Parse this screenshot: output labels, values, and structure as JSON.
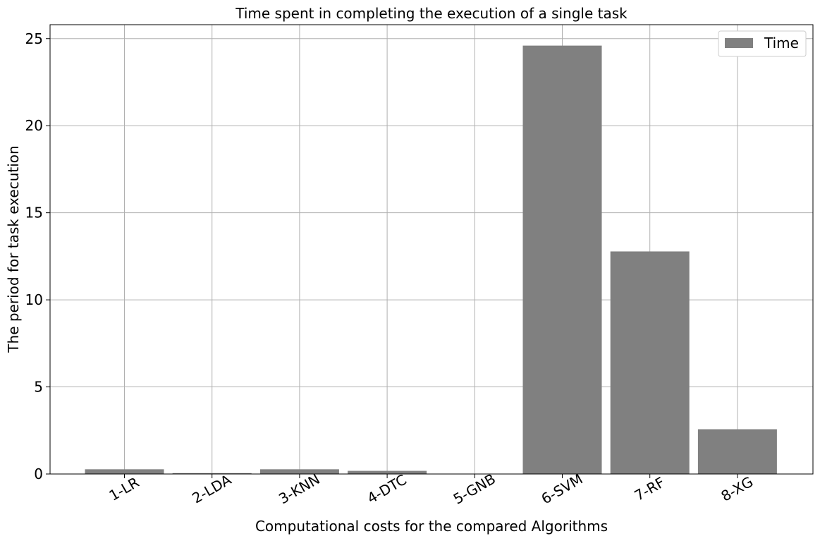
{
  "chart_data": {
    "type": "bar",
    "title": "Time spent in completing the execution of a single task",
    "xlabel": "Computational costs for the compared Algorithms",
    "ylabel": "The period for task execution",
    "categories": [
      "1-LR",
      "2-LDA",
      "3-KNN",
      "4-DTC",
      "5-GNB",
      "6-SVM",
      "7-RF",
      "8-XG"
    ],
    "series": [
      {
        "name": "Time",
        "values": [
          0.27,
          0.05,
          0.27,
          0.18,
          0.01,
          24.6,
          12.78,
          2.57
        ]
      }
    ],
    "ylim": [
      0,
      25.8
    ],
    "yticks": [
      0,
      5,
      10,
      15,
      20,
      25
    ],
    "grid": true,
    "legend_position": "top-right",
    "bar_color": "#808080"
  }
}
